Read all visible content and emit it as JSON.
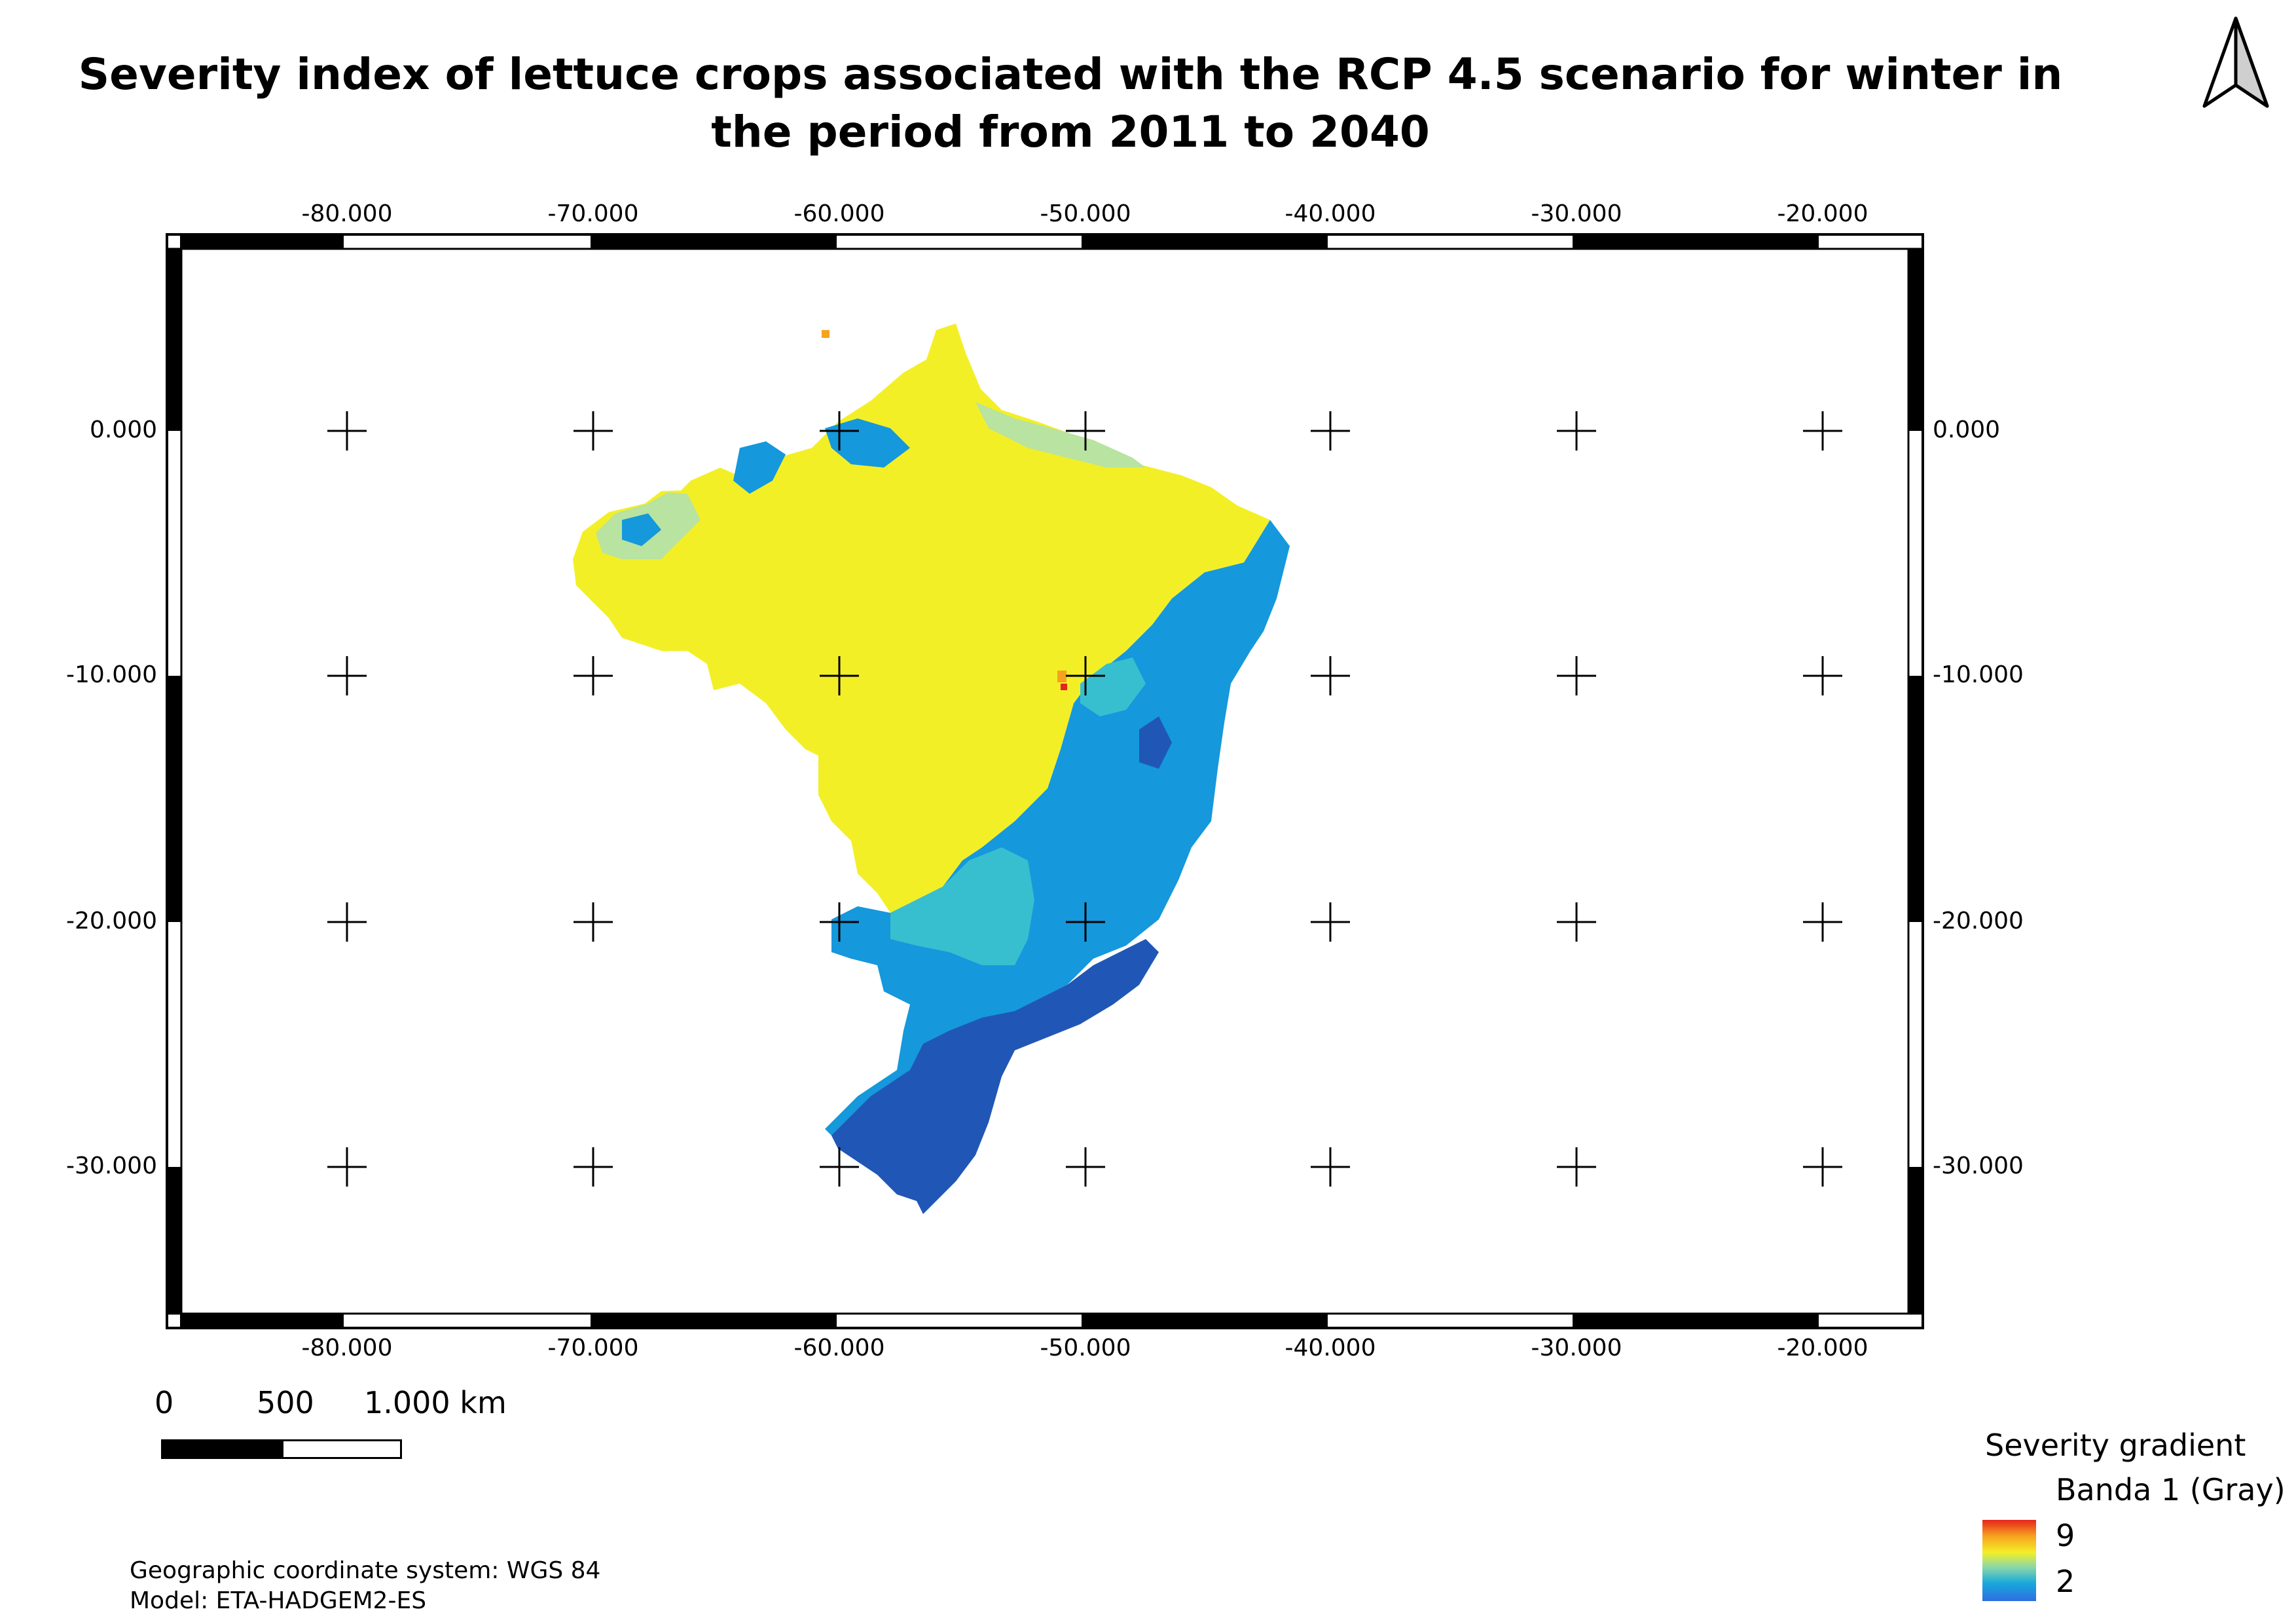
{
  "title": "Severity index of lettuce crops associated with the RCP 4.5 scenario for winter in the period from 2011 to 2040",
  "map": {
    "x_ticks": [
      "-80.000",
      "-70.000",
      "-60.000",
      "-50.000",
      "-40.000",
      "-30.000",
      "-20.000"
    ],
    "y_ticks": [
      "0.000",
      "-10.000",
      "-20.000",
      "-30.000"
    ],
    "colors": {
      "very_high": "#e6241e",
      "high": "#f7a21f",
      "moderate": "#f3ef27",
      "low_green": "#b8e3a0",
      "low_teal": "#38bfcf",
      "low_blue": "#1598dc",
      "lowest": "#2057b6"
    }
  },
  "scale_bar": {
    "labels": [
      "0",
      "500",
      "1.000 km"
    ]
  },
  "legend": {
    "title": "Severity gradient",
    "band": "Banda 1 (Gray)",
    "max": "9",
    "min": "2"
  },
  "footnotes": {
    "crs": "Geographic coordinate system: WGS 84",
    "model": "Model: ETA-HADGEM2-ES"
  }
}
